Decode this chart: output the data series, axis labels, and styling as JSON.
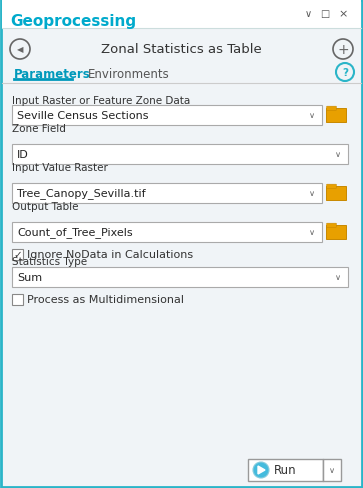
{
  "title": "Zonal Statistics as Table",
  "header": "Geoprocessing",
  "tab1": "Parameters",
  "tab2": "Environments",
  "bg_color": "#eef2f5",
  "border_color": "#2ab5c8",
  "header_text_color": "#00aacc",
  "title_text_color": "#333333",
  "label_color": "#333333",
  "input_bg": "#ffffff",
  "input_border": "#aaaaaa",
  "tab_active_color": "#0099bb",
  "fields": [
    {
      "label": "Input Raster or Feature Zone Data",
      "value": "Seville Census Sections",
      "has_folder": true
    },
    {
      "label": "Zone Field",
      "value": "ID",
      "has_folder": false
    },
    {
      "label": "Input Value Raster",
      "value": "Tree_Canopy_Sevilla.tif",
      "has_folder": true
    },
    {
      "label": "Output Table",
      "value": "Count_of_Tree_Pixels",
      "has_folder": true
    }
  ],
  "checkbox1_label": "Ignore NoData in Calculations",
  "checkbox1_checked": true,
  "stats_label": "Statistics Type",
  "stats_value": "Sum",
  "checkbox2_label": "Process as Multidimensional",
  "checkbox2_checked": false,
  "run_button_color": "#44bbdd",
  "folder_icon_color": "#e8a000",
  "folder_icon_border": "#c88800",
  "win_bg": "#f0f4f7"
}
